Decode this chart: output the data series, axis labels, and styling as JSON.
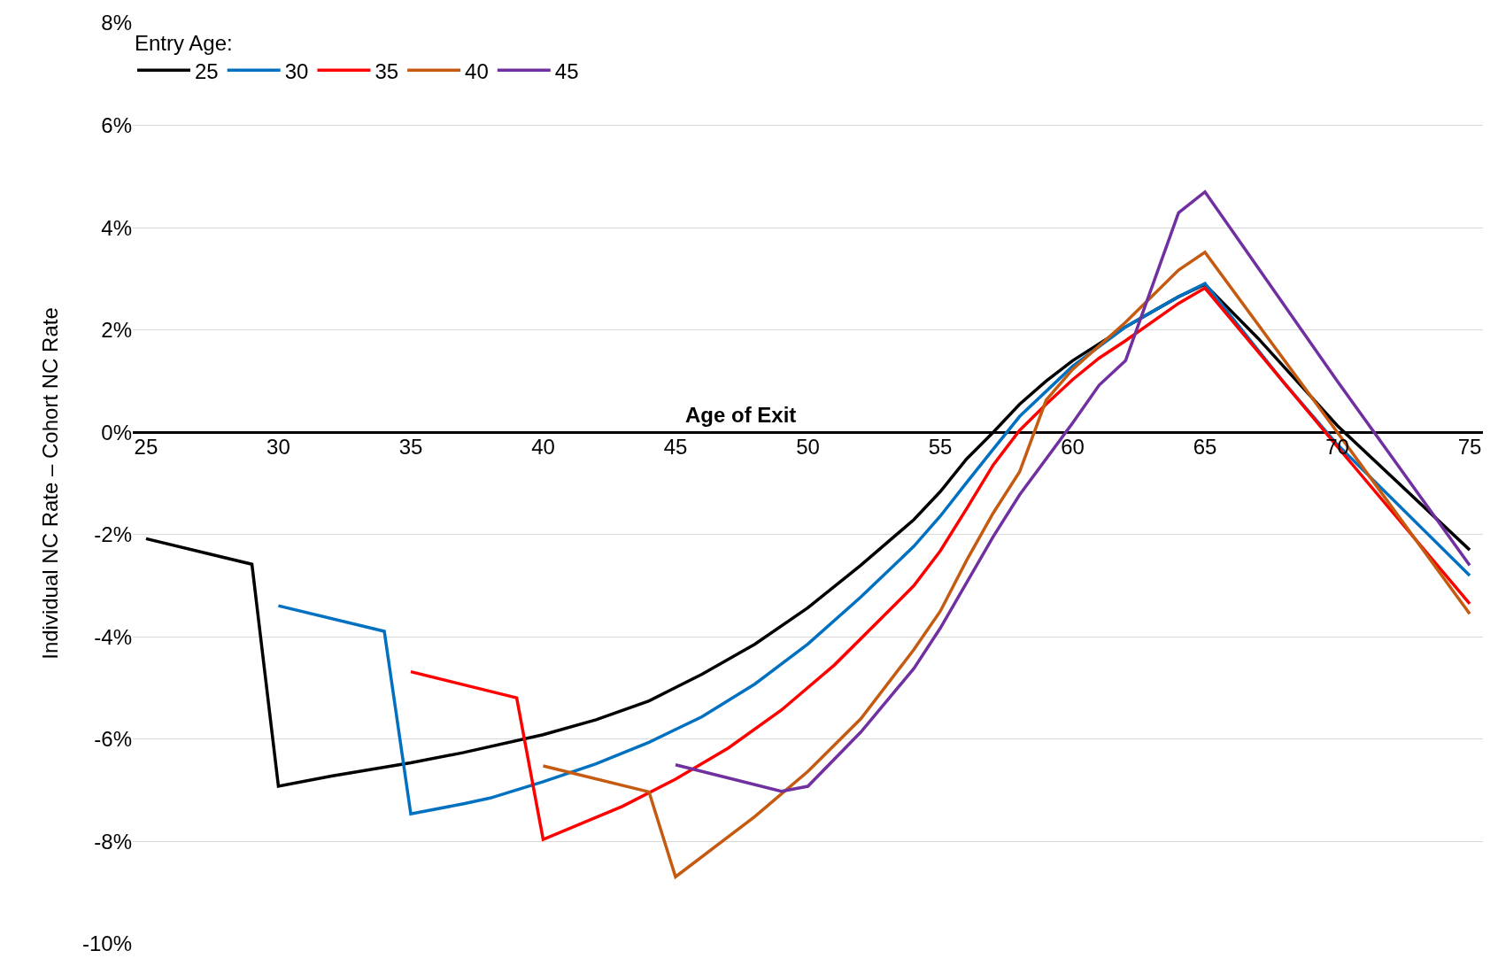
{
  "chart_data": {
    "type": "line",
    "xlabel": "Age of Exit",
    "ylabel": "Individual NC Rate – Cohort NC Rate",
    "legend_title": "Entry Age:",
    "legend": "top left",
    "grid": "y",
    "line_style": "solid",
    "marker": "none",
    "xlim": [
      24.5,
      75.5
    ],
    "xticks": [
      25,
      30,
      35,
      40,
      45,
      50,
      55,
      60,
      65,
      70,
      75
    ],
    "ylim": [
      -10,
      8
    ],
    "yticks": [
      {
        "value": -10,
        "label": "-10%"
      },
      {
        "value": -8,
        "label": "-8%"
      },
      {
        "value": -6,
        "label": "-6%"
      },
      {
        "value": -4,
        "label": "-4%"
      },
      {
        "value": -2,
        "label": "-2%"
      },
      {
        "value": 0,
        "label": "0%"
      },
      {
        "value": 2,
        "label": "2%"
      },
      {
        "value": 4,
        "label": "4%"
      },
      {
        "value": 6,
        "label": "6%"
      },
      {
        "value": 8,
        "label": "8%"
      }
    ],
    "series": [
      {
        "name": "25",
        "color": "#000000",
        "x": [
          25,
          29,
          30,
          32,
          35,
          37,
          40,
          42,
          44,
          45,
          46,
          48,
          50,
          52,
          54,
          55,
          56,
          57,
          58,
          59,
          60,
          62,
          64,
          65,
          67,
          70,
          75
        ],
        "values": [
          -2.08,
          -2.58,
          -6.92,
          -6.72,
          -6.46,
          -6.26,
          -5.91,
          -5.62,
          -5.25,
          -4.99,
          -4.73,
          -4.14,
          -3.43,
          -2.6,
          -1.71,
          -1.16,
          -0.52,
          0.0,
          0.55,
          1.0,
          1.4,
          2.06,
          2.65,
          2.89,
          1.84,
          0.13,
          -2.3
        ]
      },
      {
        "name": "30",
        "color": "#0070c0",
        "x": [
          30,
          34,
          35,
          37,
          38,
          40,
          42,
          44,
          46,
          48,
          50,
          52,
          54,
          55,
          56,
          57,
          58,
          60,
          62,
          64,
          65,
          68,
          70,
          75
        ],
        "values": [
          -3.39,
          -3.89,
          -7.46,
          -7.26,
          -7.15,
          -6.83,
          -6.48,
          -6.06,
          -5.56,
          -4.92,
          -4.14,
          -3.22,
          -2.23,
          -1.64,
          -0.98,
          -0.33,
          0.31,
          1.29,
          2.06,
          2.65,
          2.91,
          0.96,
          -0.24,
          -2.8
        ]
      },
      {
        "name": "35",
        "color": "#ff0000",
        "x": [
          35,
          39,
          40,
          43,
          45,
          47,
          49,
          51,
          53,
          54,
          55,
          56,
          57,
          58,
          59,
          60,
          61,
          62,
          64,
          65,
          70,
          75
        ],
        "values": [
          -4.68,
          -5.19,
          -7.96,
          -7.31,
          -6.78,
          -6.17,
          -5.43,
          -4.55,
          -3.52,
          -3.0,
          -2.32,
          -1.49,
          -0.64,
          0.04,
          0.55,
          1.03,
          1.45,
          1.79,
          2.52,
          2.82,
          -0.28,
          -3.35
        ]
      },
      {
        "name": "40",
        "color": "#c55a11",
        "x": [
          40,
          44,
          45,
          48,
          50,
          52,
          54,
          55,
          56,
          57,
          58,
          59,
          60,
          62,
          64,
          65,
          70,
          75
        ],
        "values": [
          -6.52,
          -7.03,
          -8.69,
          -7.51,
          -6.63,
          -5.6,
          -4.25,
          -3.5,
          -2.5,
          -1.58,
          -0.77,
          0.63,
          1.23,
          2.15,
          3.17,
          3.52,
          0.0,
          -3.55
        ]
      },
      {
        "name": "45",
        "color": "#7030a0",
        "x": [
          45,
          49,
          50,
          52,
          54,
          55,
          57,
          58,
          60,
          61,
          62,
          64,
          65,
          70,
          75
        ],
        "values": [
          -6.5,
          -7.02,
          -6.92,
          -5.86,
          -4.62,
          -3.83,
          -2.04,
          -1.22,
          0.18,
          0.92,
          1.4,
          4.29,
          4.7,
          1.0,
          -2.6
        ]
      }
    ]
  }
}
